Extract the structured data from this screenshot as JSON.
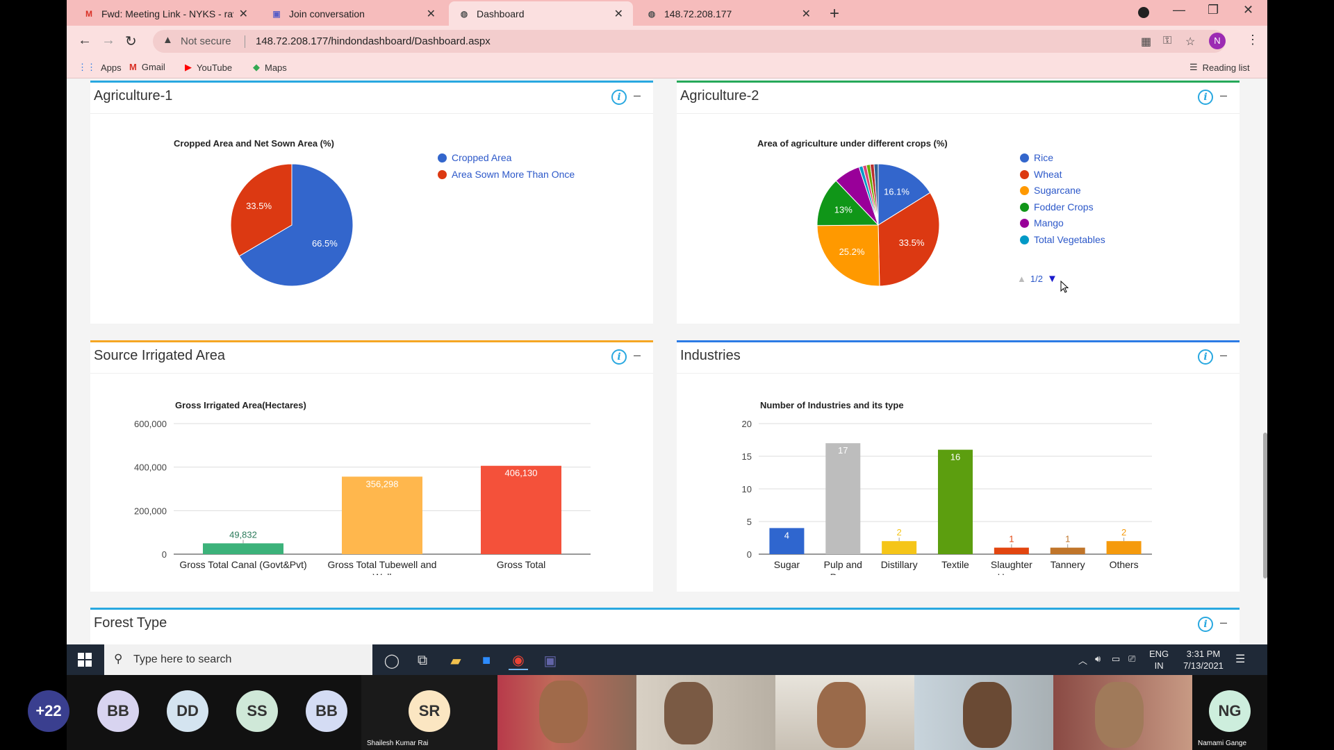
{
  "browser": {
    "tabs": [
      {
        "title": "Fwd: Meeting Link - NYKS - ravin",
        "icon": "gmail-icon",
        "active": false
      },
      {
        "title": "Join conversation",
        "icon": "teams-icon",
        "active": false
      },
      {
        "title": "Dashboard",
        "icon": "globe-icon",
        "active": true
      },
      {
        "title": "148.72.208.177",
        "icon": "globe-icon",
        "active": false
      }
    ],
    "security_label": "Not secure",
    "url": "148.72.208.177/hindondashboard/Dashboard.aspx",
    "profile_initial": "N",
    "bookmarks": [
      "Apps",
      "Gmail",
      "YouTube",
      "Maps"
    ],
    "reading_list": "Reading list"
  },
  "panels": {
    "agri1": {
      "title": "Agriculture-1",
      "accent": "#29a8e0"
    },
    "agri2": {
      "title": "Agriculture-2",
      "accent": "#26a95a"
    },
    "irrigation": {
      "title": "Source Irrigated Area",
      "accent": "#f5a623"
    },
    "industries": {
      "title": "Industries",
      "accent": "#2c7be5"
    },
    "forest": {
      "title": "Forest Type",
      "accent": "#29a8e0"
    }
  },
  "chart_data": [
    {
      "id": "agri1",
      "type": "pie",
      "title": "Cropped Area and Net Sown Area (%)",
      "slices": [
        {
          "label": "Cropped Area",
          "value": 66.5,
          "display": "66.5%",
          "color": "#3366cc"
        },
        {
          "label": "Area Sown More Than Once",
          "value": 33.5,
          "display": "33.5%",
          "color": "#dc3912"
        }
      ],
      "legend": "right"
    },
    {
      "id": "agri2",
      "type": "pie",
      "title": "Area of agriculture under different crops (%)",
      "slices": [
        {
          "label": "Rice",
          "value": 16.1,
          "display": "16.1%",
          "color": "#3366cc"
        },
        {
          "label": "Wheat",
          "value": 33.5,
          "display": "33.5%",
          "color": "#dc3912"
        },
        {
          "label": "Sugarcane",
          "value": 25.2,
          "display": "25.2%",
          "color": "#ff9900"
        },
        {
          "label": "Fodder Crops",
          "value": 13,
          "display": "13%",
          "color": "#109618"
        },
        {
          "label": "Mango",
          "value": 7.0,
          "display": "",
          "color": "#990099"
        },
        {
          "label": "Total Vegetables",
          "value": 1.0,
          "display": "",
          "color": "#0099c6"
        },
        {
          "label": "",
          "value": 1.0,
          "display": "",
          "color": "#dd4477"
        },
        {
          "label": "",
          "value": 1.0,
          "display": "",
          "color": "#66aa00"
        },
        {
          "label": "",
          "value": 1.0,
          "display": "",
          "color": "#b82e2e"
        },
        {
          "label": "",
          "value": 1.1,
          "display": "",
          "color": "#316395"
        }
      ],
      "visible_legend_count": 6,
      "legend": "right",
      "pager": "1/2"
    },
    {
      "id": "irrigation",
      "type": "bar",
      "title": "Gross Irrigated Area(Hectares)",
      "categories": [
        "Gross Total Canal (Govt&Pvt)",
        "Gross Total Tubewell and Well",
        "Gross Total"
      ],
      "category_lines": [
        [
          "Gross Total Canal (Govt&Pvt)"
        ],
        [
          "Gross Total Tubewell and",
          "Well"
        ],
        [
          "Gross Total"
        ]
      ],
      "values": [
        49832,
        356298,
        406130
      ],
      "value_labels": [
        "49,832",
        "356,298",
        "406,130"
      ],
      "colors": [
        "#3cb27a",
        "#ffb74d",
        "#f4513a"
      ],
      "ylim": [
        0,
        600000
      ],
      "yticks": [
        0,
        200000,
        400000,
        600000
      ],
      "ytick_labels": [
        "0",
        "200,000",
        "400,000",
        "600,000"
      ]
    },
    {
      "id": "industries",
      "type": "bar",
      "title": "Number of Industries and its type",
      "categories": [
        "Sugar",
        "Pulp and Paper",
        "Distillary",
        "Textile",
        "Slaughter House",
        "Tannery",
        "Others"
      ],
      "category_lines": [
        [
          "Sugar"
        ],
        [
          "Pulp and",
          "Paper"
        ],
        [
          "Distillary"
        ],
        [
          "Textile"
        ],
        [
          "Slaughter",
          "House"
        ],
        [
          "Tannery"
        ],
        [
          "Others"
        ]
      ],
      "values": [
        4,
        17,
        2,
        16,
        1,
        1,
        2
      ],
      "value_labels": [
        "4",
        "17",
        "2",
        "16",
        "1",
        "1",
        "2"
      ],
      "colors": [
        "#2f66cf",
        "#bdbdbd",
        "#f5c518",
        "#5c9e0f",
        "#e2450f",
        "#c0752a",
        "#f59a0c"
      ],
      "ylim": [
        0,
        20
      ],
      "yticks": [
        0,
        5,
        10,
        15,
        20
      ],
      "ytick_labels": [
        "0",
        "5",
        "10",
        "15",
        "20"
      ]
    }
  ],
  "taskbar": {
    "search_placeholder": "Type here to search",
    "lang_line1": "ENG",
    "lang_line2": "IN",
    "time": "3:31 PM",
    "date": "7/13/2021"
  },
  "meeting": {
    "participants": [
      {
        "initials": "+22",
        "color": "#3a3f8f",
        "text_color": "#ffffff"
      },
      {
        "initials": "BB",
        "color": "#d8d4f0",
        "text_color": "#333333"
      },
      {
        "initials": "DD",
        "color": "#d4e4f0",
        "text_color": "#333333"
      },
      {
        "initials": "SS",
        "color": "#cfe8d8",
        "text_color": "#333333"
      },
      {
        "initials": "BB",
        "color": "#d4dcf4",
        "text_color": "#333333"
      }
    ],
    "speaker_initials": "SR",
    "speaker_name": "Shailesh Kumar Rai",
    "last_initials": "NG",
    "last_name": "Namami Gange"
  }
}
